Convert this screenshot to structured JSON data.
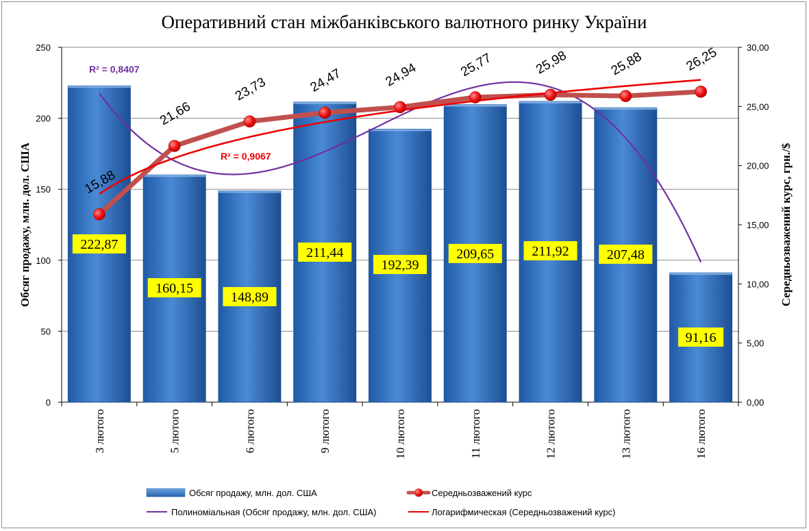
{
  "chart_data": {
    "type": "bar",
    "title": "Оперативний стан міжбанківського валютного ринку України",
    "categories": [
      "3 лютого",
      "5 лютого",
      "6 лютого",
      "9 лютого",
      "10 лютого",
      "11 лютого",
      "12 лютого",
      "13 лютого",
      "16 лютого"
    ],
    "series": [
      {
        "name": "Обсяг продажу, млн. дол. США",
        "type": "bar",
        "axis": "left",
        "values": [
          222.87,
          160.15,
          148.89,
          211.44,
          192.39,
          209.65,
          211.92,
          207.48,
          91.16
        ],
        "labels": [
          "222,87",
          "160,15",
          "148,89",
          "211,44",
          "192,39",
          "209,65",
          "211,92",
          "207,48",
          "91,16"
        ]
      },
      {
        "name": "Середньозважений курс",
        "type": "line",
        "axis": "right",
        "values": [
          15.88,
          21.66,
          23.73,
          24.47,
          24.94,
          25.77,
          25.98,
          25.88,
          26.25
        ],
        "labels": [
          "15,88",
          "21,66",
          "23,73",
          "24,47",
          "24,94",
          "25,77",
          "25,98",
          "25,88",
          "26,25"
        ]
      }
    ],
    "trendlines": [
      {
        "name": "Полиноміальная (Обсяг продажу, млн. дол. США)",
        "kind": "polynomial",
        "of": "Обсяг продажу, млн. дол. США",
        "r2": "R² = 0,8407"
      },
      {
        "name": "Логарифмическая (Середньозважений курс)",
        "kind": "logarithmic",
        "of": "Середньозважений курс",
        "r2": "R² = 0,9067"
      }
    ],
    "ylabel": "Обсяг продажу, млн. дол. США",
    "y2label": "Середньозважений курс, грн./$",
    "ylim": [
      0,
      250
    ],
    "y2lim": [
      0,
      30
    ],
    "yticks": [
      "0",
      "50",
      "100",
      "150",
      "200",
      "250"
    ],
    "y2ticks": [
      "0,00",
      "5,00",
      "10,00",
      "15,00",
      "20,00",
      "25,00",
      "30,00"
    ],
    "grid": true,
    "legend_position": "bottom",
    "colors": {
      "bar": "#2e6db8",
      "bar_light": "#5a95d8",
      "rate_line": "#c0504d",
      "rate_marker": "#ee1111",
      "poly_trend": "#7030a0",
      "log_trend": "#ee0000",
      "label_bg": "#ffff00"
    }
  }
}
